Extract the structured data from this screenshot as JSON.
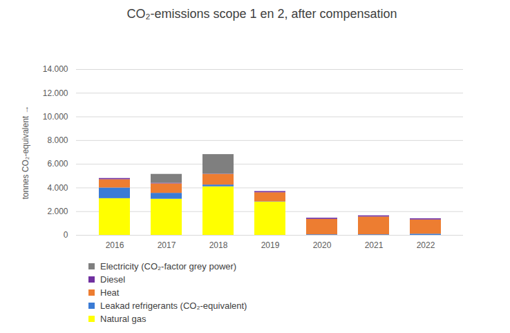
{
  "chart_data": {
    "type": "bar",
    "title": "CO₂-emissions scope 1 en 2, after compensation",
    "y_label": "tonnes CO₂-equivalent",
    "categories": [
      "2016",
      "2017",
      "2018",
      "2019",
      "2020",
      "2021",
      "2022"
    ],
    "stacked": true,
    "grid": true,
    "legend": "bottom",
    "ylim": [
      0,
      14000
    ],
    "yticks": [
      0,
      {
        "value": 2000,
        "label": "2.000"
      },
      {
        "value": 4000,
        "label": "4.000"
      },
      {
        "value": 6000,
        "label": "6.000"
      },
      {
        "value": 8000,
        "label": "8.000"
      },
      {
        "value": 10000,
        "label": "10.000"
      },
      {
        "value": 12000,
        "label": "12.000"
      },
      {
        "value": 14000,
        "label": "14.000"
      }
    ],
    "series": [
      {
        "name": "Natural gas",
        "color": "#ffff00",
        "values": [
          3100,
          3050,
          4100,
          2800,
          0,
          0,
          0
        ]
      },
      {
        "name": "Leakad refrigerants (CO₂-equivalent)",
        "color": "#3a7bd5",
        "values": [
          900,
          500,
          150,
          30,
          50,
          50,
          100
        ]
      },
      {
        "name": "Heat",
        "color": "#ed7d31",
        "values": [
          700,
          800,
          900,
          770,
          1300,
          1500,
          1200
        ]
      },
      {
        "name": "Diesel",
        "color": "#7030a0",
        "values": [
          100,
          50,
          20,
          100,
          100,
          100,
          100
        ]
      },
      {
        "name": "Electricity (CO₂-factor grey power)",
        "color": "#7f7f7f",
        "values": [
          0,
          750,
          1650,
          0,
          0,
          0,
          0
        ]
      }
    ]
  }
}
